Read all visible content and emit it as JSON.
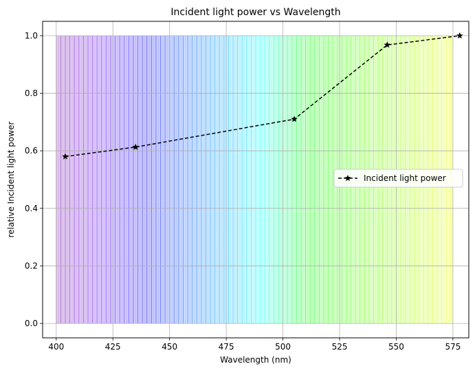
{
  "chart_data": {
    "type": "line",
    "title": "Incident light power vs Wavelength",
    "xlabel": "Wavelength (nm)",
    "ylabel": "relative Incident light power",
    "xlim": [
      394,
      582
    ],
    "ylim": [
      -0.05,
      1.05
    ],
    "xticks": [
      400,
      425,
      450,
      475,
      500,
      525,
      550,
      575
    ],
    "yticks": [
      0.0,
      0.2,
      0.4,
      0.6,
      0.8,
      1.0
    ],
    "xtick_labels": [
      "400",
      "425",
      "450",
      "475",
      "500",
      "525",
      "550",
      "575"
    ],
    "ytick_labels": [
      "0.0",
      "0.2",
      "0.4",
      "0.6",
      "0.8",
      "1.0"
    ],
    "grid": true,
    "legend_position": "center-right",
    "series": [
      {
        "name": "Incident light power",
        "color": "#000000",
        "linestyle": "dashed",
        "marker": "star",
        "x": [
          404,
          435,
          505,
          546,
          578
        ],
        "y": [
          0.58,
          0.613,
          0.71,
          0.968,
          1.0
        ]
      }
    ],
    "spectrum_background": {
      "x_start": 400,
      "x_end": 575,
      "height": 1.0
    }
  }
}
